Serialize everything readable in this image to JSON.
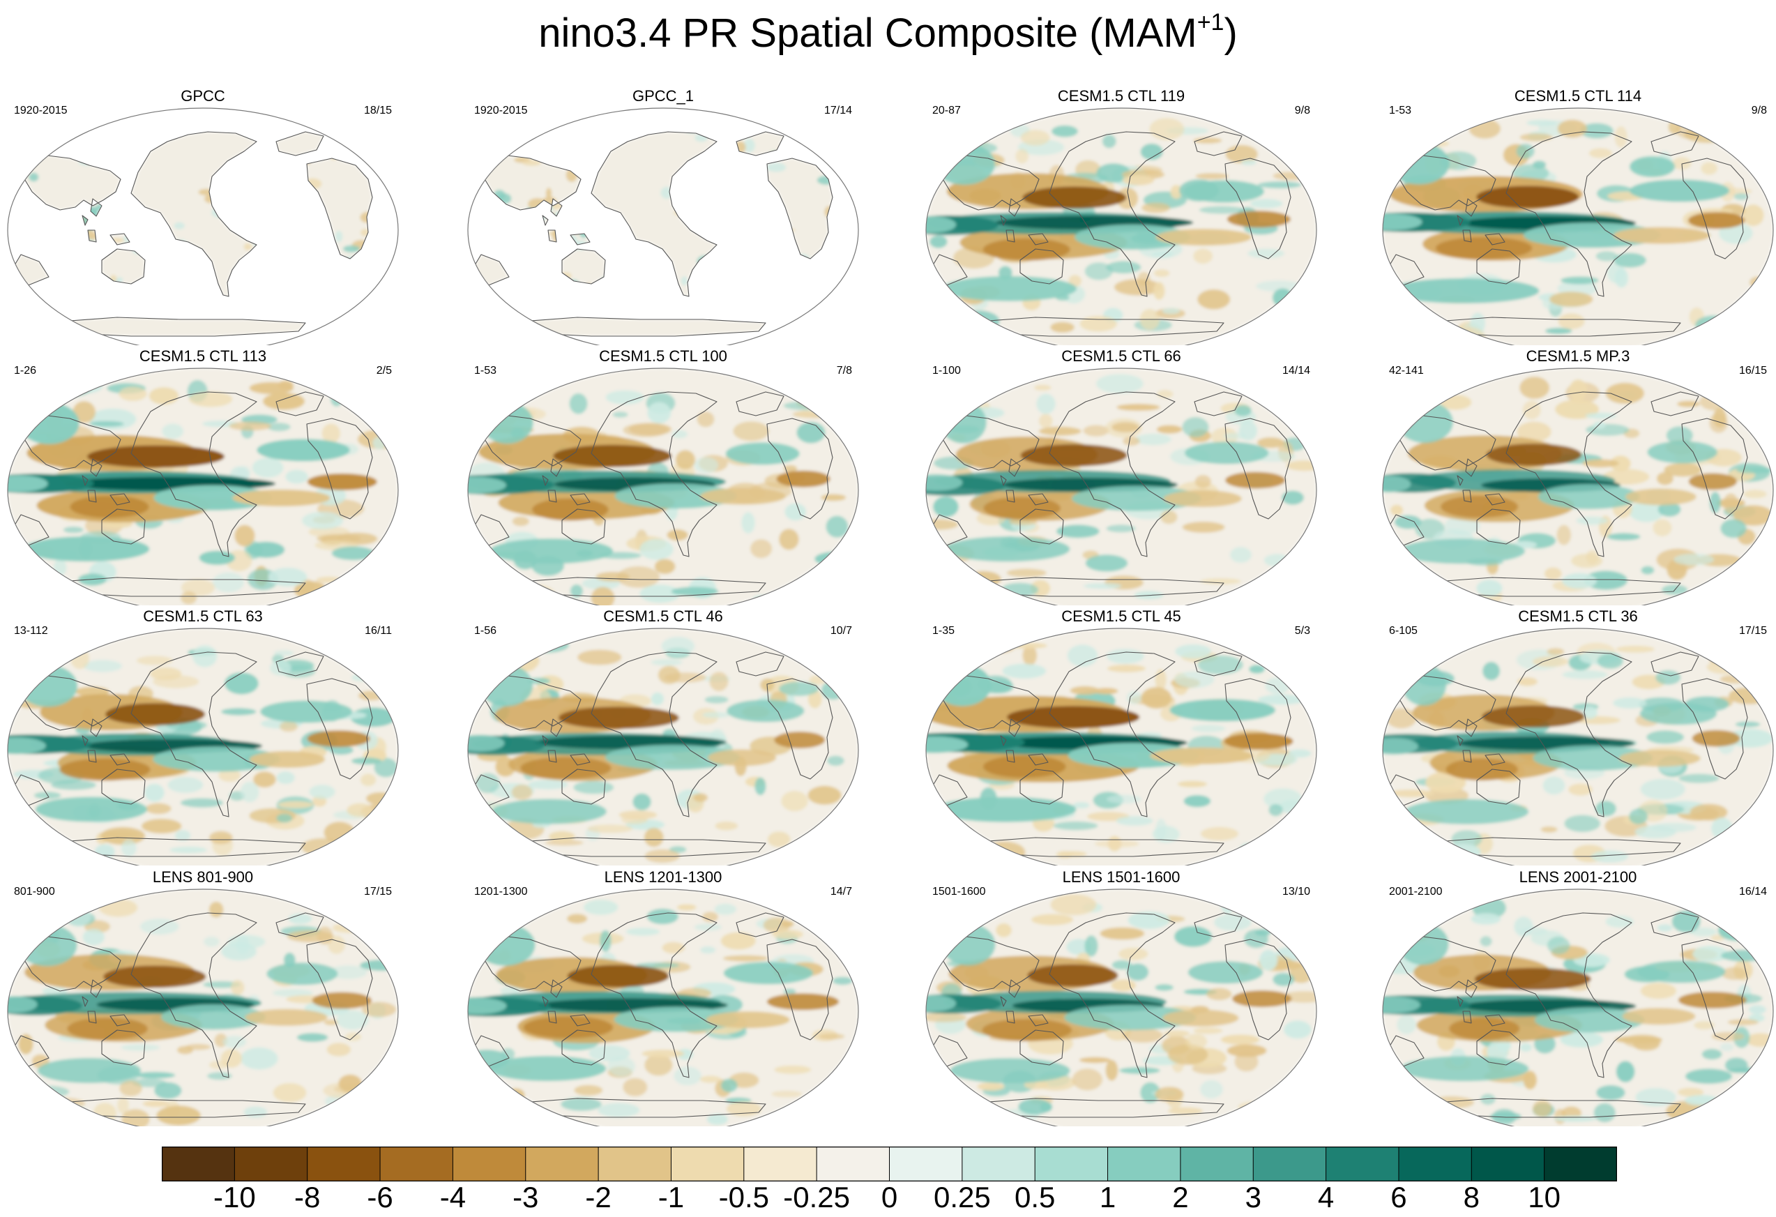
{
  "title": {
    "main": "nino3.4 PR Spatial Composite (MAM",
    "superscript": "+1",
    "close": ")"
  },
  "panels": [
    {
      "title": "GPCC",
      "left": "1920-2015",
      "right": "18/15",
      "kind": "obs",
      "intensity": 0.35
    },
    {
      "title": "GPCC_1",
      "left": "1920-2015",
      "right": "17/14",
      "kind": "obs",
      "intensity": 0.35
    },
    {
      "title": "CESM1.5 CTL 119",
      "left": "20-87",
      "right": "9/8",
      "kind": "model",
      "intensity": 1.0
    },
    {
      "title": "CESM1.5 CTL 114",
      "left": "1-53",
      "right": "9/8",
      "kind": "model",
      "intensity": 1.05
    },
    {
      "title": "CESM1.5 CTL 113",
      "left": "1-26",
      "right": "2/5",
      "kind": "model",
      "intensity": 1.1
    },
    {
      "title": "CESM1.5 CTL 100",
      "left": "1-53",
      "right": "7/8",
      "kind": "model",
      "intensity": 1.0
    },
    {
      "title": "CESM1.5 CTL 66",
      "left": "1-100",
      "right": "14/14",
      "kind": "model",
      "intensity": 0.95
    },
    {
      "title": "CESM1.5 MP.3",
      "left": "42-141",
      "right": "16/15",
      "kind": "model",
      "intensity": 0.9
    },
    {
      "title": "CESM1.5 CTL 63",
      "left": "13-112",
      "right": "16/11",
      "kind": "model",
      "intensity": 1.0
    },
    {
      "title": "CESM1.5 CTL 46",
      "left": "1-56",
      "right": "10/7",
      "kind": "model",
      "intensity": 0.95
    },
    {
      "title": "CESM1.5 CTL 45",
      "left": "1-35",
      "right": "5/3",
      "kind": "model",
      "intensity": 1.1
    },
    {
      "title": "CESM1.5 CTL 36",
      "left": "6-105",
      "right": "17/15",
      "kind": "model",
      "intensity": 0.9
    },
    {
      "title": "LENS 801-900",
      "left": "801-900",
      "right": "17/15",
      "kind": "model",
      "intensity": 0.95
    },
    {
      "title": "LENS 1201-1300",
      "left": "1201-1300",
      "right": "14/7",
      "kind": "model",
      "intensity": 1.0
    },
    {
      "title": "LENS 1501-1600",
      "left": "1501-1600",
      "right": "13/10",
      "kind": "model",
      "intensity": 0.95
    },
    {
      "title": "LENS 2001-2100",
      "left": "2001-2100",
      "right": "16/14",
      "kind": "model",
      "intensity": 0.95
    }
  ],
  "colorbar": {
    "labels": [
      "-10",
      "-8",
      "-6",
      "-4",
      "-3",
      "-2",
      "-1",
      "-0.5",
      "-0.25",
      "0",
      "0.25",
      "0.5",
      "1",
      "2",
      "3",
      "4",
      "6",
      "8",
      "10"
    ],
    "colors": [
      "#553310",
      "#6e400c",
      "#8a520f",
      "#a56c22",
      "#bf8a3a",
      "#d2a85e",
      "#e1c489",
      "#eedbaf",
      "#f5ead1",
      "#f4f1ea",
      "#e8f3ef",
      "#cdeae3",
      "#a8ddd2",
      "#86cdbf",
      "#5fb4a5",
      "#3c998b",
      "#1e8173",
      "#07685b",
      "#00574a",
      "#003c2f"
    ]
  }
}
